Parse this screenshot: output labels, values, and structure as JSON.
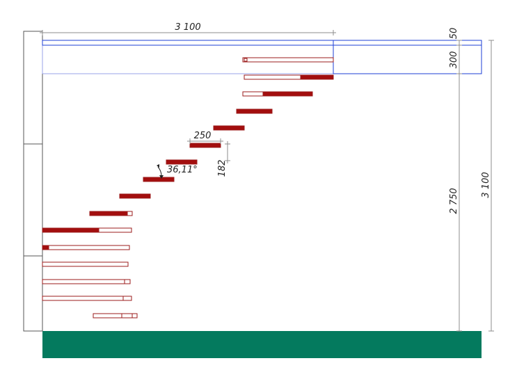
{
  "dimensions": {
    "total_width": "3 100",
    "slab_top": "50",
    "slab_thickness": "300",
    "step_tread": "250",
    "step_riser": "182",
    "stair_angle": "36,11°",
    "floor_height": "2 750",
    "total_height": "3 100"
  },
  "colors": {
    "step_fill": "#a30e0e",
    "step_outline": "#9b1b1b",
    "slab_outline": "#1e3fd6",
    "ground_fill": "#047a5e",
    "dimension_line": "#8c8c8c",
    "wall_outline": "#555555"
  }
}
